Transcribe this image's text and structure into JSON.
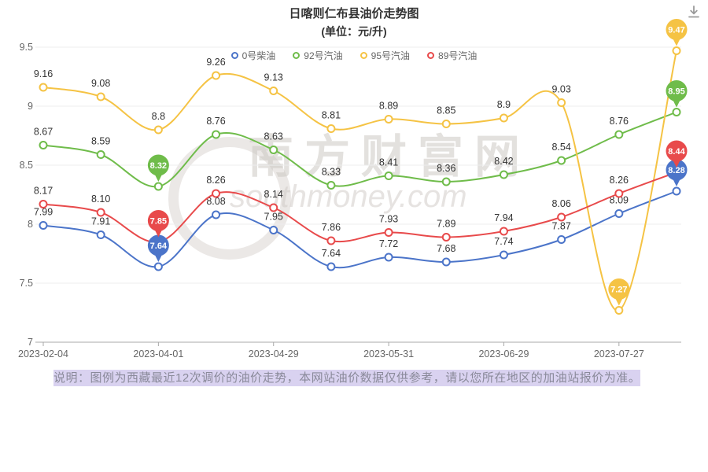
{
  "header": {
    "title": "日喀则仁布县油价走势图",
    "subtitle": "(单位：元/升)"
  },
  "watermark": {
    "text": "南方财富网",
    "subtext": "southmoney.com"
  },
  "footer": {
    "note": "说明：图例为西藏最近12次调价的油价走势，本网站油价数据仅供参考，请以您所在地区的加油站报价为准。"
  },
  "chart_data": {
    "type": "line",
    "title": "日喀则仁布县油价走势图",
    "subtitle": "(单位：元/升)",
    "ylabel": "元/升",
    "ylim": [
      7,
      9.5
    ],
    "yticks": [
      7,
      7.5,
      8,
      8.5,
      9,
      9.5
    ],
    "grid": true,
    "smooth": true,
    "legend_position": "top",
    "x_labels": [
      "2023-02-04",
      "",
      "2023-04-01",
      "",
      "2023-04-29",
      "",
      "2023-05-31",
      "",
      "2023-06-29",
      "",
      "2023-07-27",
      ""
    ],
    "series": [
      {
        "name": "0号柴油",
        "color": "#4b74c9",
        "values": [
          7.99,
          7.91,
          7.64,
          8.08,
          7.95,
          7.64,
          7.72,
          7.68,
          7.74,
          7.87,
          8.09,
          8.28
        ],
        "labels": [
          "7.99",
          "7.91",
          "7.64",
          "8.08",
          "7.95",
          "7.64",
          "7.72",
          "7.68",
          "7.74",
          "7.87",
          "8.09",
          "8.28"
        ],
        "highlighted_indices": [
          2,
          11
        ]
      },
      {
        "name": "92号汽油",
        "color": "#6fbc4a",
        "values": [
          8.67,
          8.59,
          8.32,
          8.76,
          8.63,
          8.33,
          8.41,
          8.36,
          8.42,
          8.54,
          8.76,
          8.95
        ],
        "labels": [
          "8.67",
          "8.59",
          "8.32",
          "8.76",
          "8.63",
          "8.33",
          "8.41",
          "8.36",
          "8.42",
          "8.54",
          "8.76",
          "8.95"
        ],
        "highlighted_indices": [
          2,
          11
        ]
      },
      {
        "name": "95号汽油",
        "color": "#f5c344",
        "values": [
          9.16,
          9.08,
          8.8,
          9.26,
          9.13,
          8.81,
          8.89,
          8.85,
          8.9,
          9.03,
          7.27,
          9.47
        ],
        "labels": [
          "9.16",
          "9.08",
          "8.8",
          "9.26",
          "9.13",
          "8.81",
          "8.89",
          "8.85",
          "8.9",
          "9.03",
          "7.27",
          "9.47"
        ],
        "highlighted_indices": [
          10,
          11
        ]
      },
      {
        "name": "89号汽油",
        "color": "#e84a4b",
        "values": [
          8.17,
          8.1,
          7.85,
          8.26,
          8.14,
          7.86,
          7.93,
          7.89,
          7.94,
          8.06,
          8.26,
          8.44
        ],
        "labels": [
          "8.17",
          "8.10",
          "7.85",
          "8.26",
          "8.14",
          "7.86",
          "7.93",
          "7.89",
          "7.94",
          "8.06",
          "8.26",
          "8.44"
        ],
        "highlighted_indices": [
          2,
          11
        ]
      }
    ]
  }
}
